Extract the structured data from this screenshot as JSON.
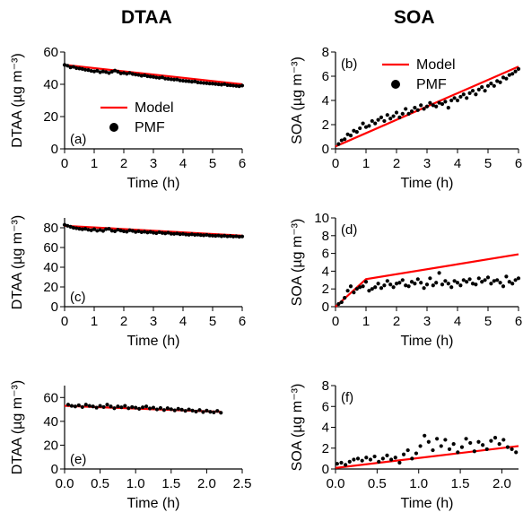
{
  "titles": {
    "left": "DTAA",
    "right": "SOA"
  },
  "legend": {
    "model": "Model",
    "pmf": "PMF"
  },
  "colors": {
    "model": "#ff0000",
    "pmf": "#000000"
  },
  "chart_data": [
    {
      "type": "scatter",
      "panel": "(a)",
      "column": "left",
      "xlabel": "Time (h)",
      "ylabel": "DTAA (µg m⁻³)",
      "xlim": [
        0,
        6
      ],
      "ylim": [
        0,
        60
      ],
      "xticks": [
        "0",
        "1",
        "2",
        "3",
        "4",
        "5",
        "6"
      ],
      "yticks": [
        "0",
        "20",
        "40",
        "60"
      ],
      "legend_entries": [
        "Model",
        "PMF"
      ],
      "legend_position": "bottom-left",
      "series": [
        {
          "name": "Model",
          "kind": "line",
          "x": [
            0,
            6
          ],
          "y": [
            52,
            40
          ]
        },
        {
          "name": "PMF",
          "kind": "scatter",
          "x": [
            0.0,
            0.1,
            0.2,
            0.3,
            0.4,
            0.5,
            0.6,
            0.7,
            0.8,
            0.9,
            1.0,
            1.1,
            1.2,
            1.3,
            1.4,
            1.5,
            1.6,
            1.7,
            1.8,
            1.9,
            2.0,
            2.1,
            2.2,
            2.3,
            2.4,
            2.5,
            2.6,
            2.7,
            2.8,
            2.9,
            3.0,
            3.1,
            3.2,
            3.3,
            3.4,
            3.5,
            3.6,
            3.7,
            3.8,
            3.9,
            4.0,
            4.1,
            4.2,
            4.3,
            4.4,
            4.5,
            4.6,
            4.7,
            4.8,
            4.9,
            5.0,
            5.1,
            5.2,
            5.3,
            5.4,
            5.5,
            5.6,
            5.7,
            5.8,
            5.9,
            6.0
          ],
          "y": [
            52,
            51.5,
            50.5,
            50.8,
            50,
            49.8,
            49.5,
            49,
            48.8,
            48.3,
            48,
            48.4,
            47.5,
            48,
            47.6,
            47,
            47.8,
            48.5,
            47.8,
            46.8,
            47,
            46.5,
            47,
            46.4,
            46,
            45.8,
            45.3,
            45.6,
            45,
            44.8,
            44.6,
            44.2,
            44,
            44.3,
            43.5,
            43.4,
            43.1,
            42.9,
            43,
            42.4,
            42.2,
            42,
            41.9,
            41.6,
            41.8,
            41.2,
            41,
            40.8,
            40.7,
            40.5,
            40.4,
            40.2,
            40,
            39.8,
            40.1,
            39.5,
            39.4,
            39.2,
            39,
            38.8,
            39.2
          ]
        }
      ]
    },
    {
      "type": "scatter",
      "panel": "(b)",
      "column": "right",
      "xlabel": "Time (h)",
      "ylabel": "SOA (µg m⁻³)",
      "xlim": [
        0,
        6
      ],
      "ylim": [
        0,
        8
      ],
      "xticks": [
        "0",
        "1",
        "2",
        "3",
        "4",
        "5",
        "6"
      ],
      "yticks": [
        "0",
        "2",
        "4",
        "6",
        "8"
      ],
      "legend_entries": [
        "Model",
        "PMF"
      ],
      "legend_position": "top-left",
      "series": [
        {
          "name": "Model",
          "kind": "line",
          "x": [
            0,
            6
          ],
          "y": [
            0.2,
            6.8
          ]
        },
        {
          "name": "PMF",
          "kind": "scatter",
          "x": [
            0.1,
            0.2,
            0.3,
            0.4,
            0.5,
            0.6,
            0.7,
            0.8,
            0.9,
            1.0,
            1.1,
            1.2,
            1.3,
            1.4,
            1.5,
            1.6,
            1.7,
            1.8,
            1.9,
            2.0,
            2.1,
            2.2,
            2.3,
            2.4,
            2.5,
            2.6,
            2.7,
            2.8,
            2.9,
            3.0,
            3.1,
            3.2,
            3.3,
            3.4,
            3.5,
            3.6,
            3.7,
            3.8,
            3.9,
            4.0,
            4.1,
            4.2,
            4.3,
            4.4,
            4.5,
            4.6,
            4.7,
            4.8,
            4.9,
            5.0,
            5.1,
            5.2,
            5.3,
            5.4,
            5.5,
            5.6,
            5.7,
            5.8,
            5.9,
            6.0
          ],
          "y": [
            0.4,
            0.7,
            0.8,
            1.2,
            1.1,
            1.5,
            1.4,
            1.7,
            2.1,
            1.8,
            1.9,
            2.3,
            2.1,
            2.4,
            2.6,
            2.3,
            2.8,
            2.5,
            2.7,
            3.0,
            2.6,
            2.9,
            3.3,
            2.9,
            3.1,
            3.4,
            3.2,
            3.6,
            3.3,
            3.5,
            3.8,
            3.6,
            3.5,
            3.8,
            3.7,
            3.9,
            3.4,
            4.0,
            4.2,
            4.0,
            4.3,
            4.5,
            4.2,
            4.6,
            4.8,
            4.5,
            4.9,
            5.1,
            4.8,
            5.2,
            5.4,
            5.2,
            5.6,
            5.5,
            5.9,
            5.8,
            6.1,
            6.2,
            6.4,
            6.6
          ]
        }
      ]
    },
    {
      "type": "scatter",
      "panel": "(c)",
      "column": "left",
      "xlabel": "Time (h)",
      "ylabel": "DTAA (µg m⁻³)",
      "xlim": [
        0,
        6
      ],
      "ylim": [
        0,
        90
      ],
      "xticks": [
        "0",
        "1",
        "2",
        "3",
        "4",
        "5",
        "6"
      ],
      "yticks": [
        "0",
        "20",
        "40",
        "60",
        "80"
      ],
      "series": [
        {
          "name": "Model",
          "kind": "line",
          "x": [
            0,
            6
          ],
          "y": [
            82,
            72
          ]
        },
        {
          "name": "PMF",
          "kind": "scatter",
          "x": [
            0.0,
            0.1,
            0.2,
            0.3,
            0.4,
            0.5,
            0.6,
            0.7,
            0.8,
            0.9,
            1.0,
            1.1,
            1.2,
            1.3,
            1.4,
            1.5,
            1.6,
            1.7,
            1.8,
            1.9,
            2.0,
            2.1,
            2.2,
            2.3,
            2.4,
            2.5,
            2.6,
            2.7,
            2.8,
            2.9,
            3.0,
            3.1,
            3.2,
            3.3,
            3.4,
            3.5,
            3.6,
            3.7,
            3.8,
            3.9,
            4.0,
            4.1,
            4.2,
            4.3,
            4.4,
            4.5,
            4.6,
            4.7,
            4.8,
            4.9,
            5.0,
            5.1,
            5.2,
            5.3,
            5.4,
            5.5,
            5.6,
            5.7,
            5.8,
            5.9,
            6.0
          ],
          "y": [
            83,
            82,
            81,
            80,
            79.5,
            79,
            78.5,
            79,
            78,
            77.5,
            78.5,
            77,
            77.8,
            76.8,
            78.6,
            79,
            77,
            76.5,
            78,
            77.2,
            76.5,
            76,
            77.5,
            76.8,
            75.8,
            76.5,
            75.5,
            76,
            75.2,
            75.8,
            75,
            74.5,
            75.5,
            74.8,
            74.3,
            75,
            74,
            73.8,
            74.2,
            73.5,
            73.8,
            73.2,
            72.9,
            73.4,
            72.8,
            73,
            72.6,
            72.4,
            72.8,
            72.2,
            72,
            71.8,
            72.1,
            71.5,
            71.9,
            71.3,
            71.6,
            71.1,
            71.4,
            70.9,
            71.2
          ]
        }
      ]
    },
    {
      "type": "scatter",
      "panel": "(d)",
      "column": "right",
      "xlabel": "Time (h)",
      "ylabel": "SOA (µg m⁻³)",
      "xlim": [
        0,
        6
      ],
      "ylim": [
        0,
        10
      ],
      "xticks": [
        "0",
        "1",
        "2",
        "3",
        "4",
        "5",
        "6"
      ],
      "yticks": [
        "0",
        "2",
        "4",
        "6",
        "8",
        "10"
      ],
      "series": [
        {
          "name": "Model",
          "kind": "line",
          "x": [
            0,
            1,
            6
          ],
          "y": [
            0,
            3.1,
            5.9
          ]
        },
        {
          "name": "PMF",
          "kind": "scatter",
          "x": [
            0.1,
            0.2,
            0.3,
            0.4,
            0.5,
            0.6,
            0.7,
            0.8,
            0.9,
            1.0,
            1.1,
            1.2,
            1.3,
            1.4,
            1.5,
            1.6,
            1.7,
            1.8,
            1.9,
            2.0,
            2.1,
            2.2,
            2.3,
            2.4,
            2.5,
            2.6,
            2.7,
            2.8,
            2.9,
            3.0,
            3.1,
            3.2,
            3.3,
            3.4,
            3.5,
            3.6,
            3.7,
            3.8,
            3.9,
            4.0,
            4.1,
            4.2,
            4.3,
            4.4,
            4.5,
            4.6,
            4.7,
            4.8,
            4.9,
            5.0,
            5.1,
            5.2,
            5.3,
            5.4,
            5.5,
            5.6,
            5.7,
            5.8,
            5.9,
            6.0
          ],
          "y": [
            0.3,
            0.5,
            1.0,
            1.8,
            2.3,
            1.6,
            2.0,
            2.2,
            2.3,
            2.8,
            1.8,
            2.0,
            2.2,
            2.6,
            2.1,
            2.4,
            2.9,
            2.5,
            2.2,
            2.6,
            2.7,
            3.0,
            2.4,
            2.3,
            2.8,
            2.6,
            3.1,
            2.7,
            2.1,
            2.5,
            3.2,
            2.4,
            2.7,
            3.8,
            2.5,
            2.9,
            2.6,
            2.2,
            2.9,
            2.7,
            2.4,
            3.0,
            2.8,
            3.1,
            2.6,
            2.5,
            3.2,
            2.8,
            3.0,
            3.3,
            2.6,
            2.9,
            3.0,
            2.7,
            2.3,
            3.4,
            2.8,
            2.6,
            3.0,
            3.2
          ]
        }
      ]
    },
    {
      "type": "scatter",
      "panel": "(e)",
      "column": "left",
      "xlabel": "Time (h)",
      "ylabel": "DTAA (µg m⁻³)",
      "xlim": [
        0,
        2.5
      ],
      "ylim": [
        0,
        70
      ],
      "xticks": [
        "0.0",
        "0.5",
        "1.0",
        "1.5",
        "2.0",
        "2.5"
      ],
      "yticks": [
        "0",
        "20",
        "40",
        "60"
      ],
      "series": [
        {
          "name": "Model",
          "kind": "line",
          "x": [
            0,
            2.2
          ],
          "y": [
            53,
            48
          ]
        },
        {
          "name": "PMF",
          "kind": "scatter",
          "x": [
            0.05,
            0.1,
            0.15,
            0.2,
            0.25,
            0.3,
            0.35,
            0.4,
            0.45,
            0.5,
            0.55,
            0.6,
            0.65,
            0.7,
            0.75,
            0.8,
            0.85,
            0.9,
            0.95,
            1.0,
            1.05,
            1.1,
            1.15,
            1.2,
            1.25,
            1.3,
            1.35,
            1.4,
            1.45,
            1.5,
            1.55,
            1.6,
            1.65,
            1.7,
            1.75,
            1.8,
            1.85,
            1.9,
            1.95,
            2.0,
            2.05,
            2.1,
            2.15,
            2.2
          ],
          "y": [
            54,
            53,
            52.5,
            53.5,
            52,
            54,
            53,
            52.5,
            51.5,
            53,
            52,
            54,
            52.5,
            51,
            52.5,
            51.8,
            53,
            51,
            52,
            51.5,
            50.5,
            51.8,
            52.5,
            50.8,
            51.5,
            50,
            51.2,
            49.5,
            51,
            50.2,
            49.2,
            50.5,
            49.8,
            48.8,
            50,
            49,
            48.2,
            49.5,
            47.8,
            49,
            48,
            47.5,
            48.8,
            47.2
          ]
        }
      ]
    },
    {
      "type": "scatter",
      "panel": "(f)",
      "column": "right",
      "xlabel": "Time (h)",
      "ylabel": "SOA (µg m⁻³)",
      "xlim": [
        0,
        2.2
      ],
      "ylim": [
        0,
        8
      ],
      "xticks": [
        "0.0",
        "0.5",
        "1.0",
        "1.5",
        "2.0"
      ],
      "yticks": [
        "0",
        "2",
        "4",
        "6",
        "8"
      ],
      "series": [
        {
          "name": "Model",
          "kind": "line",
          "x": [
            0,
            2.2
          ],
          "y": [
            0.1,
            2.2
          ]
        },
        {
          "name": "PMF",
          "kind": "scatter",
          "x": [
            0.02,
            0.07,
            0.12,
            0.17,
            0.22,
            0.27,
            0.32,
            0.37,
            0.42,
            0.47,
            0.52,
            0.57,
            0.62,
            0.67,
            0.72,
            0.77,
            0.82,
            0.87,
            0.92,
            0.97,
            1.02,
            1.07,
            1.12,
            1.17,
            1.22,
            1.27,
            1.32,
            1.37,
            1.42,
            1.47,
            1.52,
            1.57,
            1.62,
            1.67,
            1.72,
            1.77,
            1.82,
            1.87,
            1.92,
            1.97,
            2.02,
            2.07,
            2.12,
            2.17
          ],
          "y": [
            0.5,
            0.6,
            0.4,
            0.7,
            0.9,
            1.0,
            0.8,
            1.1,
            0.9,
            1.2,
            0.7,
            1.0,
            1.3,
            0.9,
            1.1,
            0.6,
            1.4,
            1.8,
            1.0,
            1.5,
            2.2,
            3.2,
            2.6,
            1.8,
            2.9,
            2.2,
            2.8,
            1.9,
            2.4,
            1.6,
            2.1,
            2.9,
            2.5,
            1.7,
            2.6,
            2.3,
            1.9,
            2.7,
            3.0,
            2.4,
            2.8,
            2.1,
            1.9,
            1.6
          ]
        }
      ]
    }
  ]
}
